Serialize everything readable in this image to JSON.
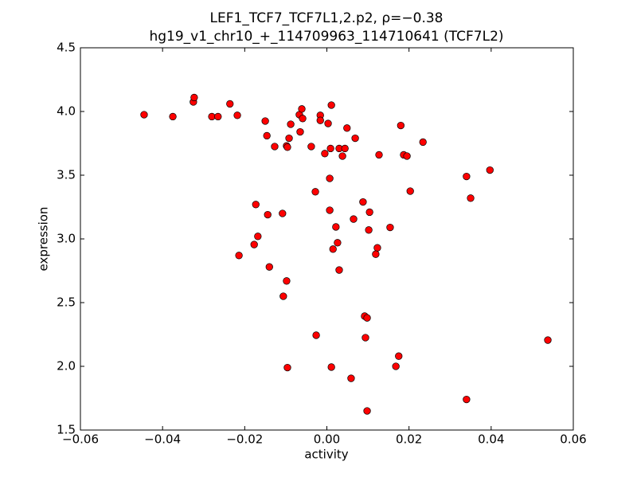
{
  "chart_data": {
    "type": "scatter",
    "title": "LEF1_TCF7_TCF7L1,2.p2, ρ=−0.38",
    "subtitle": "hg19_v1_chr10_+_114709963_114710641 (TCF7L2)",
    "x_label": "activity",
    "y_label": "expression",
    "color": "#ff0000",
    "xlim": [
      -0.06,
      0.06
    ],
    "xticks": [
      {
        "value": -0.06,
        "label": "−0.06"
      },
      {
        "value": -0.04,
        "label": "−0.04"
      },
      {
        "value": -0.02,
        "label": "−0.02"
      },
      {
        "value": 0,
        "label": "0.00"
      },
      0.02,
      0.04,
      0.06
    ],
    "ylim": [
      1.5,
      4.5
    ],
    "yticks": [
      1.5,
      {
        "value": 2,
        "label": "2.0"
      },
      2.5,
      {
        "value": 3,
        "label": "3.0"
      },
      3.5,
      {
        "value": 4,
        "label": "4.0"
      },
      4.5
    ],
    "x": [
      -0.0445,
      -0.0375,
      -0.0325,
      -0.0323,
      -0.028,
      -0.0265,
      -0.0236,
      -0.0218,
      -0.015,
      -0.0146,
      -0.0127,
      -0.0098,
      -0.0096,
      -0.0092,
      -0.0088,
      -0.0065,
      -0.0067,
      -0.0061,
      -0.0059,
      -0.0038,
      -0.0016,
      -0.0016,
      0.0003,
      0.0011,
      -0.0005,
      0.0009,
      0.003,
      0.0044,
      0.0038,
      0.0049,
      0.0069,
      0.0127,
      0.018,
      0.0187,
      0.0195,
      0.0234,
      0.034,
      0.0397,
      0.035,
      0.0203,
      -0.0028,
      0.0007,
      0.0088,
      0.0104,
      0.0007,
      -0.0173,
      -0.0144,
      -0.0108,
      0.0065,
      0.0154,
      0.0022,
      0.0102,
      -0.0168,
      -0.0177,
      0.0026,
      0.0015,
      0.0123,
      0.0119,
      -0.0214,
      -0.014,
      0.003,
      -0.0098,
      -0.0106,
      0.0092,
      0.0098,
      -0.0026,
      0.0094,
      0.0175,
      0.0168,
      0.0011,
      -0.0096,
      0.0059,
      0.034,
      0.0098,
      0.0538
    ],
    "values": [
      3.975,
      3.96,
      4.075,
      4.11,
      3.96,
      3.96,
      4.06,
      3.97,
      3.925,
      3.81,
      3.725,
      3.73,
      3.72,
      3.79,
      3.9,
      3.84,
      3.975,
      4.02,
      3.945,
      3.725,
      3.97,
      3.93,
      3.906,
      4.05,
      3.67,
      3.71,
      3.71,
      3.71,
      3.65,
      3.87,
      3.79,
      3.66,
      3.89,
      3.66,
      3.65,
      3.76,
      3.49,
      3.54,
      3.32,
      3.375,
      3.37,
      3.475,
      3.29,
      3.21,
      3.225,
      3.27,
      3.19,
      3.2,
      3.156,
      3.09,
      3.094,
      3.07,
      3.02,
      2.956,
      2.97,
      2.92,
      2.93,
      2.88,
      2.87,
      2.78,
      2.756,
      2.67,
      2.55,
      2.394,
      2.38,
      2.244,
      2.225,
      2.08,
      2.0,
      1.994,
      1.99,
      1.906,
      1.74,
      1.65,
      2.206
    ]
  }
}
